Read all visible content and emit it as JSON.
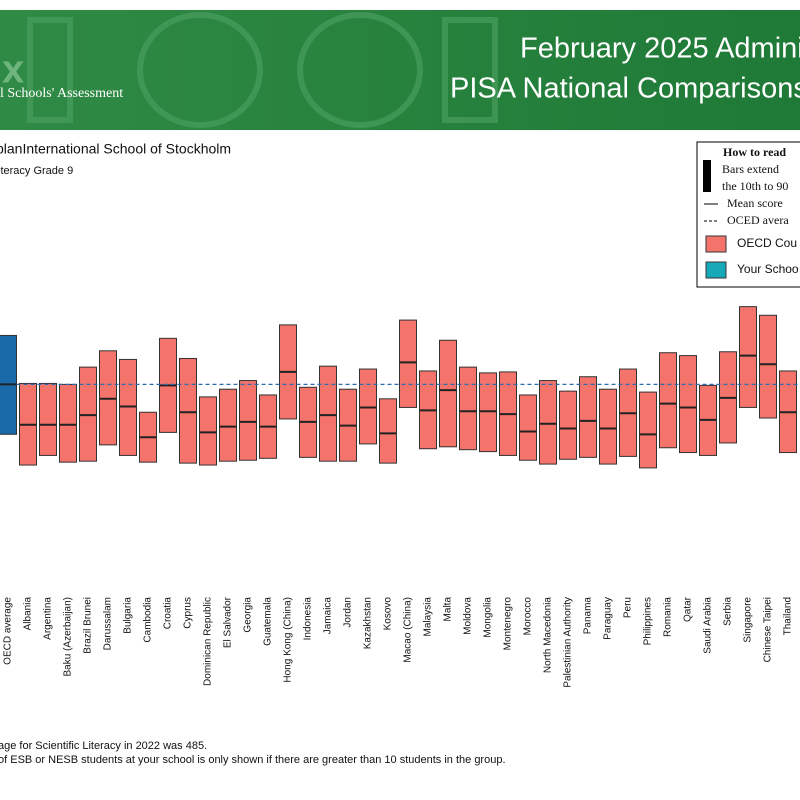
{
  "header": {
    "title_line1": "February 2025 Adminis",
    "title_line2": "PISA National Comparisons",
    "brand": "l Schools' Assessment",
    "logo": "x"
  },
  "chart_data": {
    "type": "range",
    "title": "planInternational School of Stockholm",
    "subtitle": "iteracy Grade 9",
    "categories": [
      "OECD average",
      "Albania",
      "Argentina",
      "Baku (Azerbaijan)",
      "Brazil Brunei",
      "Darussalam",
      "Bulgaria",
      "Cambodia",
      "Croatia",
      "Cyprus",
      "Dominican Republic",
      "El Salvador",
      "Georgia",
      "Guatemala",
      "Hong Kong (China)",
      "Indonesia",
      "Jamaica",
      "Jordan",
      "Kazakhstan",
      "Kosovo",
      "Macao (China)",
      "Malaysia",
      "Malta",
      "Moldova",
      "Mongolia",
      "Montenegro",
      "Morocco",
      "North Macedonia",
      "Palestinian Authority",
      "Panama",
      "Paraguay",
      "Peru",
      "Philippines",
      "Romania",
      "Qatar",
      "Saudi Arabia",
      "Serbia",
      "Singapore",
      "Chinese Taipei",
      "Thailand"
    ],
    "high": [
      536,
      486,
      486,
      485,
      503,
      520,
      511,
      456,
      533,
      512,
      472,
      480,
      489,
      474,
      547,
      482,
      504,
      480,
      501,
      470,
      552,
      499,
      531,
      503,
      497,
      498,
      474,
      489,
      478,
      493,
      480,
      501,
      477,
      518,
      515,
      484,
      519,
      566,
      557,
      499
    ],
    "low": [
      433,
      401,
      411,
      404,
      405,
      422,
      411,
      404,
      435,
      403,
      401,
      405,
      406,
      408,
      449,
      409,
      405,
      405,
      423,
      403,
      461,
      418,
      420,
      417,
      415,
      411,
      406,
      402,
      407,
      409,
      402,
      410,
      398,
      419,
      414,
      411,
      424,
      461,
      450,
      414
    ],
    "mean": [
      485,
      443,
      443,
      443,
      453,
      470,
      462,
      430,
      484,
      456,
      435,
      441,
      446,
      441,
      498,
      446,
      453,
      442,
      461,
      434,
      508,
      458,
      479,
      457,
      457,
      454,
      436,
      444,
      439,
      447,
      439,
      455,
      433,
      465,
      461,
      448,
      471,
      515,
      506,
      456
    ],
    "bar_colors": [
      "#1a6aaa",
      "#f4736b",
      "#f4736b",
      "#f4736b",
      "#f4736b",
      "#f4736b",
      "#f4736b",
      "#f4736b",
      "#f4736b",
      "#f4736b",
      "#f4736b",
      "#f4736b",
      "#f4736b",
      "#f4736b",
      "#f4736b",
      "#f4736b",
      "#f4736b",
      "#f4736b",
      "#f4736b",
      "#f4736b",
      "#f4736b",
      "#f4736b",
      "#f4736b",
      "#f4736b",
      "#f4736b",
      "#f4736b",
      "#f4736b",
      "#f4736b",
      "#f4736b",
      "#f4736b",
      "#f4736b",
      "#f4736b",
      "#f4736b",
      "#f4736b",
      "#f4736b",
      "#f4736b",
      "#f4736b",
      "#f4736b",
      "#f4736b",
      "#f4736b"
    ],
    "reference_color": "#2b6cb0",
    "ylim": [
      250,
      750
    ],
    "legend": {
      "title": "How to read",
      "line1": "Bars extend",
      "line2": "the 10th to 90",
      "mean": "Mean score",
      "average": "OCED avera",
      "oecd": "OECD Cou",
      "school": "Your Schoo",
      "oecd_color": "#f4736b",
      "school_color": "#17a9b8"
    },
    "footnotes": [
      "age for Scientific Literacy in 2022 was 485.",
      "of ESB or NESB students at your school is only shown if there are greater than 10 students in the group."
    ]
  }
}
